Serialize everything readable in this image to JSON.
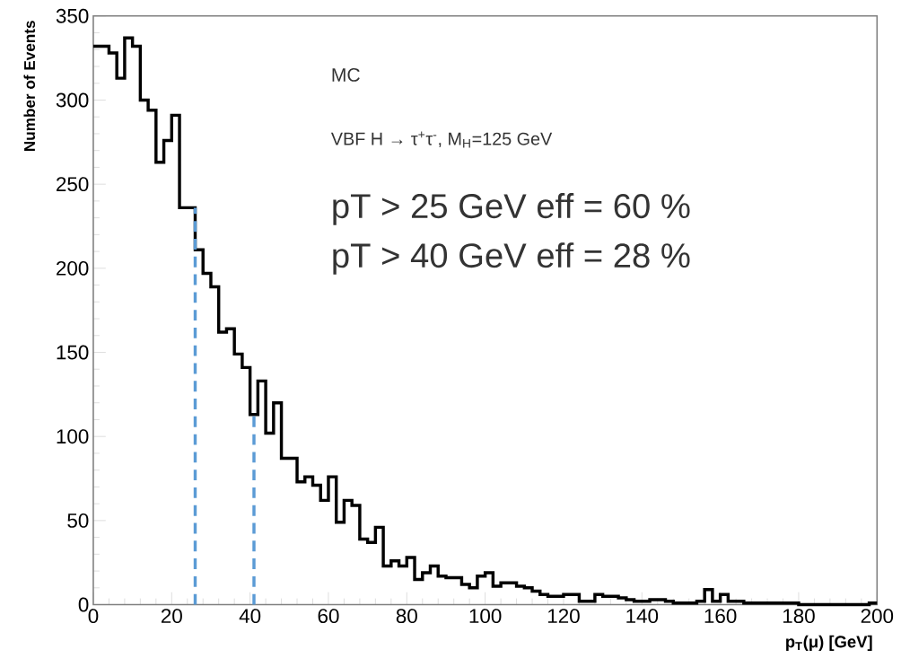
{
  "chart_data": {
    "type": "histogram",
    "xlabel": "p$_{T}$(μ) [GeV]",
    "ylabel": "Number of Events",
    "bins": [
      0,
      2,
      4,
      6,
      8,
      10,
      12,
      14,
      16,
      18,
      20,
      22,
      24,
      26,
      28,
      30,
      32,
      34,
      36,
      38,
      40,
      42,
      44,
      46,
      48,
      50,
      52,
      54,
      56,
      58,
      60,
      62,
      64,
      66,
      68,
      70,
      72,
      74,
      76,
      78,
      80,
      82,
      84,
      86,
      88,
      90,
      92,
      94,
      96,
      98,
      100,
      102,
      104,
      106,
      108,
      110,
      112,
      114,
      116,
      118,
      120,
      122,
      124,
      126,
      128,
      130,
      132,
      134,
      136,
      138,
      140,
      142,
      144,
      146,
      148,
      150,
      152,
      154,
      156,
      158,
      160,
      162,
      164,
      166,
      168,
      170,
      172,
      174,
      176,
      178,
      180,
      182,
      184,
      186,
      188,
      190,
      192,
      194,
      196,
      198,
      200
    ],
    "values": [
      332,
      332,
      328,
      313,
      337,
      332,
      300,
      294,
      263,
      276,
      291,
      236,
      236,
      211,
      197,
      189,
      162,
      164,
      149,
      141,
      113,
      133,
      102,
      120,
      87,
      87,
      73,
      76,
      71,
      62,
      76,
      49,
      62,
      59,
      39,
      37,
      46,
      23,
      26,
      23,
      28,
      15,
      19,
      23,
      17,
      16,
      16,
      12,
      10,
      17,
      19,
      11,
      13,
      13,
      11,
      10,
      8,
      6,
      5,
      5,
      6,
      6,
      2,
      2,
      6,
      5,
      5,
      4,
      3,
      2,
      2,
      3,
      3,
      2,
      1,
      1,
      1,
      2,
      9,
      2,
      6,
      2,
      2,
      1,
      1,
      1,
      1,
      1,
      1,
      1,
      0,
      0,
      0,
      0,
      0,
      0,
      0,
      0,
      0,
      1
    ],
    "color": "#000000",
    "xlim": [
      0,
      200
    ],
    "xticks": [
      0,
      20,
      40,
      60,
      80,
      100,
      120,
      140,
      160,
      180,
      200
    ],
    "ylim": [
      0,
      350
    ],
    "yticks": [
      0,
      50,
      100,
      150,
      200,
      250,
      300,
      350
    ],
    "grid": false,
    "marker": "none",
    "line_style": "solid",
    "ref_lines": [
      {
        "axis": "x",
        "value": 26,
        "color": "#5b9bd5",
        "line_style": "dashed"
      },
      {
        "axis": "x",
        "value": 41,
        "color": "#5b9bd5",
        "line_style": "dashed"
      }
    ],
    "annotations": [
      "MC",
      "VBF H → τ$^{+}$τ$^{-}$, M$_{H}$=125 GeV",
      "pT > 25 GeV  eff = 60 %",
      "pT > 40 GeV  eff = 28 %"
    ]
  }
}
